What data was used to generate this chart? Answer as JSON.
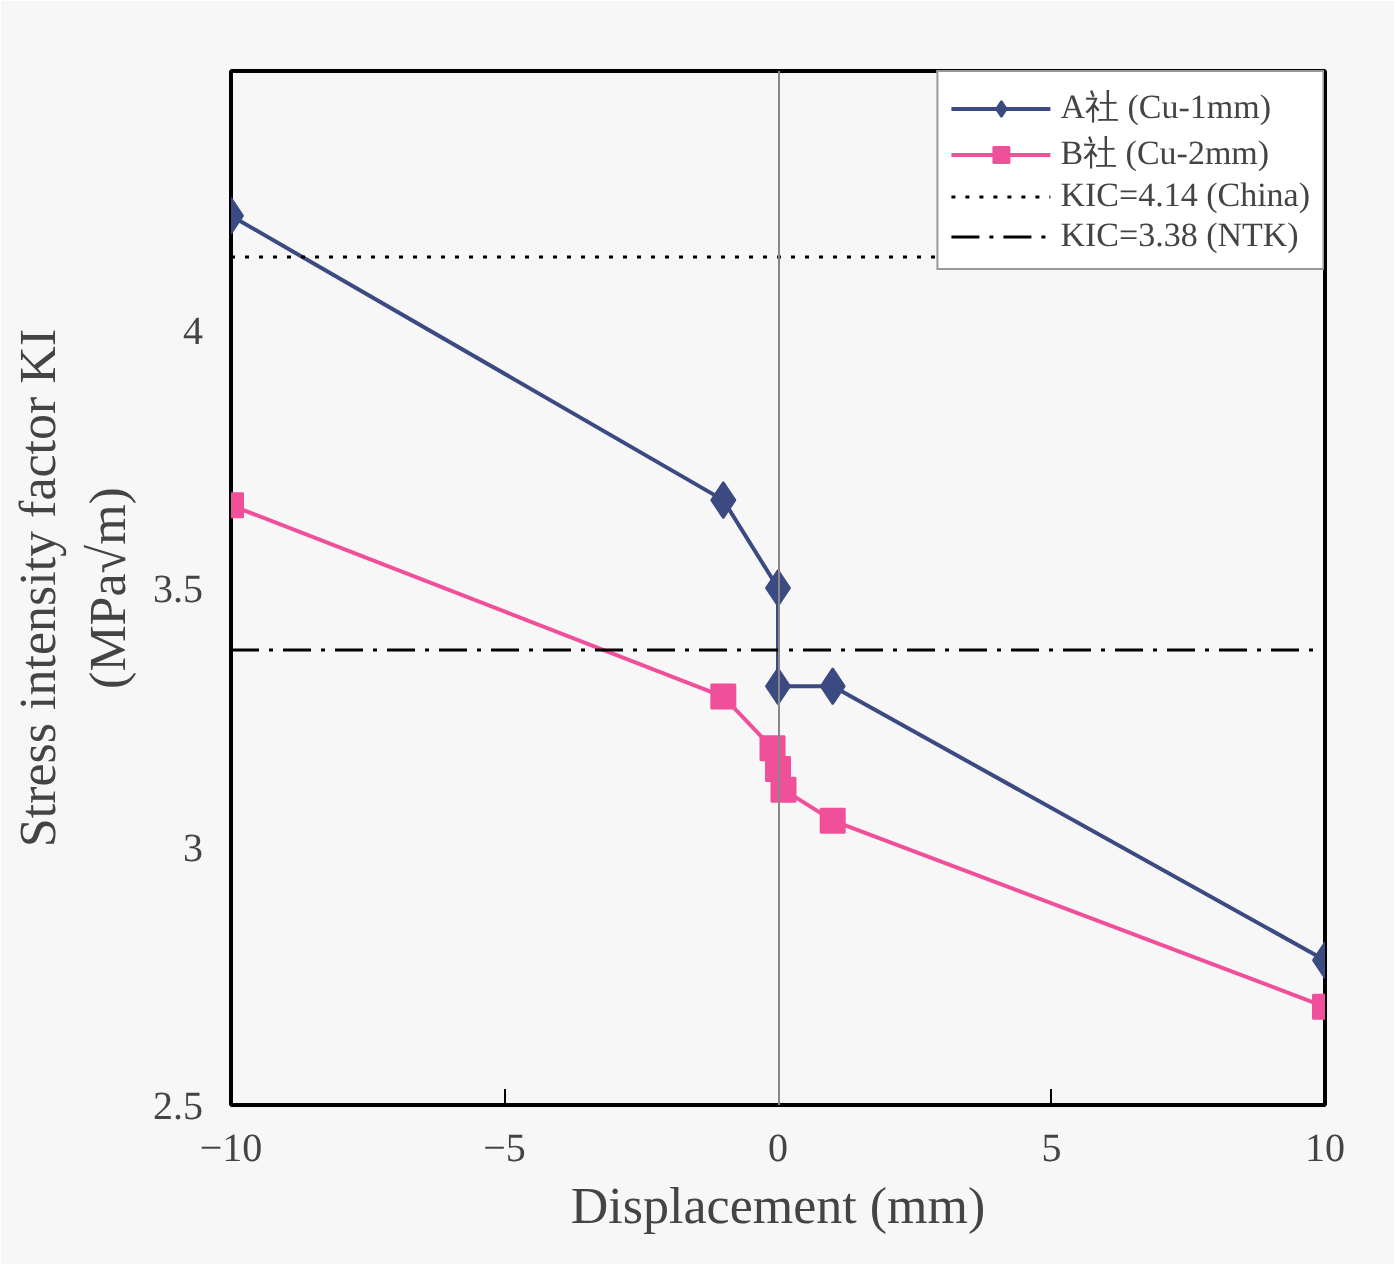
{
  "chart_data": {
    "type": "line",
    "xlabel": "Displacement (mm)",
    "ylabel": "Stress intensity factor KI\n(MPa√m)",
    "xlim": [
      -10,
      10
    ],
    "xticks": [
      -10,
      -5,
      0,
      5,
      10
    ],
    "ylim": [
      2.5,
      4.5
    ],
    "yticks": [
      2.5,
      3,
      3.5,
      4
    ],
    "legend": "top right",
    "series": [
      {
        "name": "A社 (Cu-1mm)",
        "color": "#3b4a80",
        "marker": "diamond",
        "x": [
          -10,
          -1,
          0,
          0,
          1,
          10
        ],
        "values": [
          4.22,
          3.67,
          3.5,
          3.31,
          3.31,
          2.78
        ]
      },
      {
        "name": "B社 (Cu-2mm)",
        "color": "#f0509a",
        "marker": "square",
        "x": [
          -10,
          -1,
          -0.1,
          0,
          0.1,
          1,
          10
        ],
        "values": [
          3.66,
          3.29,
          3.19,
          3.15,
          3.11,
          3.05,
          2.69
        ]
      }
    ],
    "ref_lines": [
      {
        "axis": "y",
        "value": 4.14,
        "label": "KIC=4.14 (China)",
        "color": "#000000",
        "line_style": "dotted"
      },
      {
        "axis": "y",
        "value": 3.38,
        "label": "KIC=3.38 (NTK)",
        "color": "#000000",
        "line_style": "dashdot"
      }
    ]
  }
}
